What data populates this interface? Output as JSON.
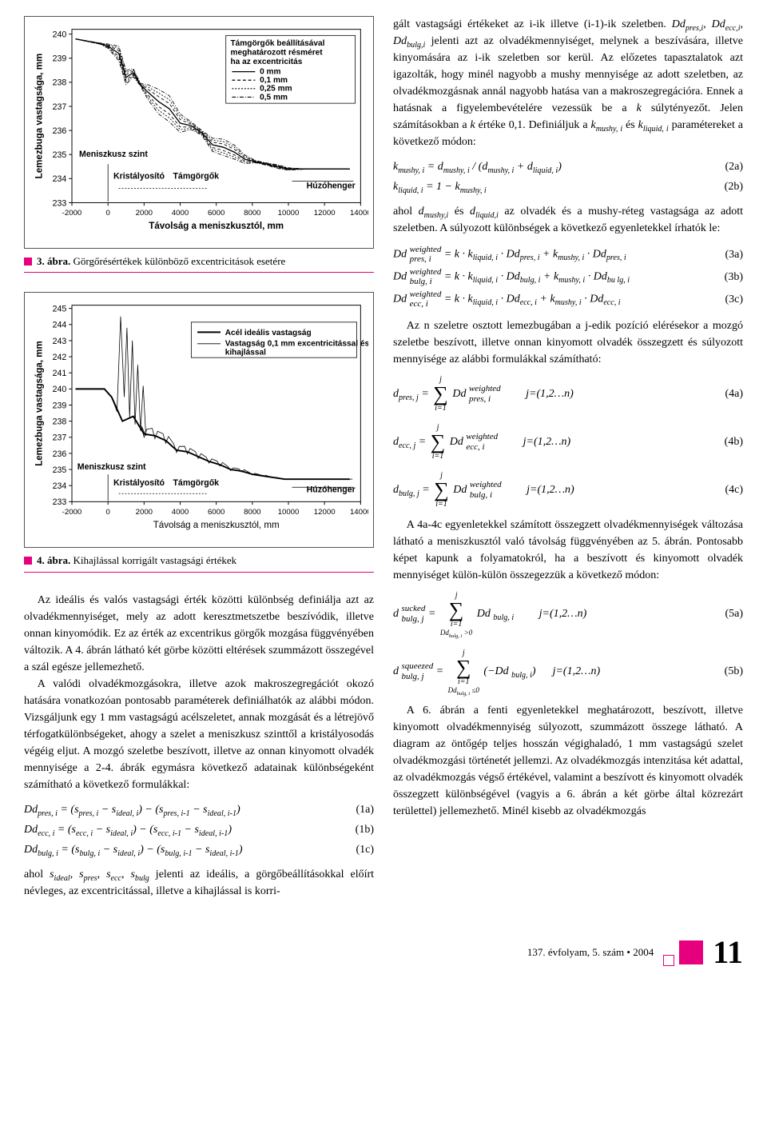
{
  "fig3": {
    "caption_bold": "3. ábra.",
    "caption_rest": "Görgőrésértékek különböző excentricitások esetére",
    "ylabel": "Lemezbuga vastagsága, mm",
    "xlabel": "Távolság a meniszkusztól, mm",
    "legend_title": "Támgörgők beállításával\nmeghatározott résméret\nha az excentricitás",
    "legend_items": [
      "0 mm",
      "0,1 mm",
      "0,25 mm",
      "0,5 mm"
    ],
    "annot1": "Meniszkusz szint",
    "annot2": "Kristályosító",
    "annot3": "Támgörgők",
    "annot4": "Húzóhenger",
    "y_ticks": [
      233,
      234,
      235,
      236,
      237,
      238,
      239,
      240
    ],
    "x_ticks": [
      -2000,
      0,
      2000,
      4000,
      6000,
      8000,
      10000,
      12000,
      14000
    ],
    "main_line": [
      [
        -1800,
        239.8
      ],
      [
        -400,
        239.6
      ],
      [
        0,
        239.5
      ],
      [
        600,
        239.2
      ],
      [
        1000,
        238.2
      ],
      [
        1400,
        238.4
      ],
      [
        1800,
        237.9
      ],
      [
        2200,
        237.6
      ],
      [
        2800,
        237.2
      ],
      [
        3400,
        236.9
      ],
      [
        4000,
        236.3
      ],
      [
        4600,
        236.2
      ],
      [
        5200,
        235.9
      ],
      [
        5800,
        235.4
      ],
      [
        6400,
        235.3
      ],
      [
        7000,
        235.1
      ],
      [
        7600,
        234.8
      ],
      [
        8200,
        234.7
      ],
      [
        8800,
        234.6
      ],
      [
        9400,
        234.5
      ],
      [
        10000,
        234.4
      ],
      [
        10600,
        234.4
      ],
      [
        11400,
        234.4
      ],
      [
        12400,
        234.4
      ],
      [
        13400,
        234.4
      ]
    ],
    "osc_amp": [
      0.0,
      0.05,
      0.1,
      0.3,
      0.35,
      0.4,
      0.45,
      0.5,
      0.55,
      0.55,
      0.5,
      0.5,
      0.45,
      0.4,
      0.35,
      0.3,
      0.25,
      0.2,
      0.15,
      0.1,
      0.05,
      0.02,
      0.0,
      0.0,
      0.0
    ],
    "colors": {
      "stroke": "#000",
      "grid": "#999",
      "bg": "#ffffff"
    }
  },
  "fig4": {
    "caption_bold": "4. ábra.",
    "caption_rest": "Kihajlással korrigált vastagsági értékek",
    "ylabel": "Lemezbuga vastagsága, mm",
    "xlabel": "Távolság a meniszkusztól, mm",
    "legend_items": [
      "Acél ideális vastagság",
      "Vastagság 0,1 mm excentricitással és kihajlással"
    ],
    "annot1": "Meniszkusz szint",
    "annot2": "Kristályosító",
    "annot3": "Támgörgők",
    "annot4": "Húzóhenger",
    "y_ticks": [
      233,
      234,
      235,
      236,
      237,
      238,
      239,
      240,
      241,
      242,
      243,
      244,
      245
    ],
    "x_ticks": [
      -2000,
      0,
      2000,
      4000,
      6000,
      8000,
      10000,
      12000,
      14000
    ],
    "base_line": [
      [
        -1800,
        240
      ],
      [
        -200,
        240
      ],
      [
        200,
        239.5
      ],
      [
        800,
        238.0
      ],
      [
        1400,
        238.3
      ],
      [
        2000,
        237.2
      ],
      [
        2600,
        237.1
      ],
      [
        3200,
        236.8
      ],
      [
        3800,
        236.2
      ],
      [
        4400,
        236.1
      ],
      [
        5000,
        235.8
      ],
      [
        5600,
        235.5
      ],
      [
        6200,
        235.3
      ],
      [
        6800,
        235.0
      ],
      [
        7400,
        234.9
      ],
      [
        8000,
        234.7
      ],
      [
        8600,
        234.6
      ],
      [
        9200,
        234.5
      ],
      [
        9800,
        234.4
      ],
      [
        10400,
        234.4
      ],
      [
        11200,
        234.4
      ],
      [
        12200,
        234.4
      ],
      [
        13400,
        234.4
      ]
    ],
    "spikes": [
      [
        700,
        244.5
      ],
      [
        900,
        239.5
      ],
      [
        1050,
        243.8
      ],
      [
        1200,
        238.2
      ],
      [
        1350,
        243.0
      ],
      [
        1500,
        237.8
      ],
      [
        1650,
        241.5
      ],
      [
        1800,
        237.4
      ],
      [
        1950,
        240.2
      ],
      [
        2100,
        237.1
      ]
    ],
    "colors": {
      "stroke": "#000",
      "grid": "#999",
      "bg": "#ffffff"
    }
  },
  "left_text": {
    "p1": "Az ideális és valós vastagsági érték közötti különbség definiálja azt az olvadékmennyiséget, mely az adott keresztmetszetbe beszívódik, illetve onnan kinyomódik. Ez az érték az excentrikus görgők mozgása függvényében változik. A 4. ábrán látható két görbe közötti eltérések szummázott összegével a szál egésze jellemezhető.",
    "p2": "A valódi olvadékmozgásokra, illetve azok makroszegregációt okozó hatására vonatkozóan pontosabb paraméterek definiálhatók az alábbi módon. Vizsgáljunk egy 1 mm vastagságú acélszeletet, annak mozgását és a létrejövő térfogatkülönbségeket, ahogy a szelet a meniszkusz szinttől a kristályosodás végéig eljut. A mozgó szeletbe beszívott, illetve az onnan kinyomott olvadék mennyisége a 2-4. ábrák egymásra következő adatainak különbségeként számítható a következő formulákkal:",
    "eq1a": "Dd_{pres, i} = (s_{pres, i} − s_{ideal, i}) − (s_{pres, i-1} − s_{ideal, i-1})",
    "eq1b": "Dd_{ecc, i} = (s_{ecc, i} − s_{ideal, i}) − (s_{ecc, i-1} − s_{ideal, i-1})",
    "eq1c": "Dd_{bulg, i} = (s_{bulg, i} − s_{ideal, i}) − (s_{bulg, i-1} − s_{ideal, i-1})",
    "num1a": "(1a)",
    "num1b": "(1b)",
    "num1c": "(1c)",
    "p3": "ahol s_{ideal}, s_{pres}, s_{ecc}, s_{bulg} jelenti az ideális, a görgőbeállításokkal előírt névleges, az excentricitással, illetve a kihajlással is korri-"
  },
  "right_text": {
    "p1": "gált vastagsági értékeket az i-ik illetve (i-1)-ik szeletben. Dd_{pres,i}, Dd_{ecc,i}, Dd_{bulg,i} jelenti azt az olvadékmennyiséget, melynek a beszívására, illetve kinyomására az i-ik szeletben sor kerül. Az előzetes tapasztalatok azt igazolták, hogy minél nagyobb a mushy mennyisége az adott szeletben, az olvadékmozgásnak annál nagyobb hatása van a makroszegregációra. Ennek a hatásnak a figyelembevételére vezessük be a k súlytényezőt. Jelen számításokban a k értéke 0,1. Definiáljuk a k_{mushy, i} és k_{liquid, i} paramétereket a következő módon:",
    "eq2a": "k_{mushy, i} = d_{mushy, i} / (d_{mushy, i} + d_{liquid, i})",
    "eq2b": "k_{liquid, i} = 1 − k_{mushy, i}",
    "num2a": "(2a)",
    "num2b": "(2b)",
    "p2": "ahol d_{mushy,i} és d_{liquid,i} az olvadék és a mushy-réteg vastagsága az adott szeletben. A súlyozott különbségek a következő egyenletekkel írhatók le:",
    "eq3a_l": "Dd ^{weighted}_{pres, i} = k · k_{liquid, i} · Dd_{pres, i} + k_{mushy, i} · Dd_{pres, i}",
    "eq3b_l": "Dd ^{weighted}_{bulg, i} = k · k_{liquid, i} · Dd_{bulg, i} + k_{mushy, i} · Dd_{bu lg, i}",
    "eq3c_l": "Dd ^{weighted}_{ecc, i} = k · k_{liquid, i} · Dd_{ecc, i} + k_{mushy, i} · Dd_{ecc, i}",
    "num3a": "(3a)",
    "num3b": "(3b)",
    "num3c": "(3c)",
    "p3": "Az n szeletre osztott lemezbugában a j-edik pozíció elérésekor a mozgó szeletbe beszívott, illetve onnan kinyomott olvadék összegzett és súlyozott mennyisége az alábbi formulákkal számítható:",
    "eq4_range": "j=(1,2…n)",
    "num4a": "(4a)",
    "num4b": "(4b)",
    "num4c": "(4c)",
    "p4": "A 4a-4c egyenletekkel számított összegzett olvadékmennyiségek változása látható a meniszkusztól való távolság függvényében az 5. ábrán. Pontosabb képet kapunk a folyamatokról, ha a beszívott és kinyomott olvadék mennyiséget külön-külön összegezzük a következő módon:",
    "num5a": "(5a)",
    "num5b": "(5b)",
    "p5": "A 6. ábrán a fenti egyenletekkel meghatározott, beszívott, illetve kinyomott olvadékmennyiség súlyozott, szummázott összege látható. A diagram az öntőgép teljes hosszán végighaladó, 1 mm vastagságú szelet olvadékmozgási történetét jellemzi. Az olvadékmozgás intenzitása két adattal, az olvadékmozgás végső értékével, valamint a beszívott és kinyomott olvadék összegzett különbségével (vagyis a 6. ábrán a két görbe által közrezárt területtel) jellemezhető. Minél kisebb az olvadékmozgás"
  },
  "footer": {
    "issue": "137. évfolyam, 5. szám • 2004",
    "page": "11"
  }
}
